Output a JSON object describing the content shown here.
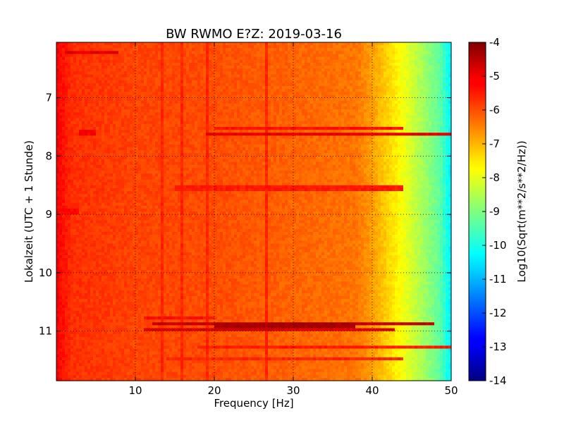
{
  "chart_data": {
    "type": "heatmap",
    "title": "BW RWMO E?Z: 2019-03-16",
    "xlabel": "Frequency [Hz]",
    "ylabel": "Lokalzeit (UTC + 1 Stunde)",
    "colorbar_label": "Log10(Sqrt(m**2/s**2/Hz))",
    "xlim": [
      0,
      50
    ],
    "ylim": [
      11.85,
      6.05
    ],
    "x_ticks": [
      "10",
      "20",
      "30",
      "40",
      "50"
    ],
    "x_tick_values": [
      10,
      20,
      30,
      40,
      50
    ],
    "y_ticks": [
      "7",
      "8",
      "9",
      "10",
      "11"
    ],
    "y_tick_values": [
      7,
      8,
      9,
      10,
      11
    ],
    "colorbar_range": [
      -14,
      -4
    ],
    "colorbar_ticks": [
      "-4",
      "-5",
      "-6",
      "-7",
      "-8",
      "-9",
      "-10",
      "-11",
      "-12",
      "-13",
      "-14"
    ],
    "colorbar_tick_values": [
      -4,
      -5,
      -6,
      -7,
      -8,
      -9,
      -10,
      -11,
      -12,
      -13,
      -14
    ],
    "colormap": "jet",
    "grid": true,
    "background_level_by_frequency": [
      {
        "hz": 0,
        "value": -5.2
      },
      {
        "hz": 2,
        "value": -5.7
      },
      {
        "hz": 10,
        "value": -5.9
      },
      {
        "hz": 20,
        "value": -6.0
      },
      {
        "hz": 38,
        "value": -6.4
      },
      {
        "hz": 40,
        "value": -6.8
      },
      {
        "hz": 43,
        "value": -7.6
      },
      {
        "hz": 46,
        "value": -8.5
      },
      {
        "hz": 48.5,
        "value": -9.3
      },
      {
        "hz": 50,
        "value": -10.4
      }
    ],
    "noise_bands": [
      {
        "time": 6.23,
        "hz_from": 1,
        "hz_to": 8,
        "value": -5.0
      },
      {
        "time": 7.52,
        "hz_from": 20,
        "hz_to": 44,
        "value": -5.4
      },
      {
        "time": 7.6,
        "hz_from": 3,
        "hz_to": 5,
        "value": -5.2
      },
      {
        "time": 7.62,
        "hz_from": 19,
        "hz_to": 50,
        "value": -5.0
      },
      {
        "time": 8.55,
        "hz_from": 15,
        "hz_to": 44,
        "value": -5.5
      },
      {
        "time": 8.95,
        "hz_from": 0.5,
        "hz_to": 3,
        "value": -5.3
      },
      {
        "time": 10.78,
        "hz_from": 11,
        "hz_to": 20,
        "value": -5.4
      },
      {
        "time": 10.86,
        "hz_from": 12,
        "hz_to": 48,
        "value": -4.7
      },
      {
        "time": 10.9,
        "hz_from": 20,
        "hz_to": 38,
        "value": -4.4
      },
      {
        "time": 10.98,
        "hz_from": 11,
        "hz_to": 43,
        "value": -4.9
      },
      {
        "time": 11.28,
        "hz_from": 18,
        "hz_to": 50,
        "value": -5.5
      },
      {
        "time": 11.47,
        "hz_from": 14,
        "hz_to": 44,
        "value": -5.6
      }
    ],
    "vertical_lines_hz": [
      13.5,
      16,
      19,
      26.5
    ]
  }
}
